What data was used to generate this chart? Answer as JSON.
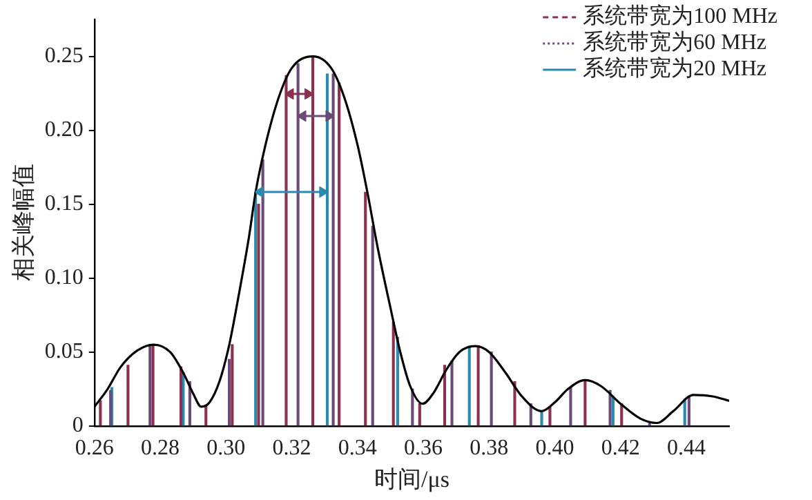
{
  "chart_data": {
    "type": "line",
    "xlabel": "时间/μs",
    "ylabel": "相关峰幅值",
    "xlim": [
      0.26,
      0.453
    ],
    "xticks": [
      0.26,
      0.28,
      {
        "value": 0.3,
        "label": "0.30"
      },
      0.32,
      0.34,
      0.36,
      0.38,
      {
        "value": 0.4,
        "label": "0.40"
      },
      0.42,
      0.44
    ],
    "ylim": [
      0,
      0.275
    ],
    "yticks": [
      0,
      0.05,
      {
        "value": 0.1,
        "label": "0.10"
      },
      0.15,
      {
        "value": 0.2,
        "label": "0.20"
      },
      0.25
    ],
    "grid": false,
    "legend": "top right",
    "series": [
      {
        "color": "#000000",
        "line_style": "solid",
        "x": [
          0.26,
          0.264,
          0.268,
          0.273,
          0.278,
          0.283,
          0.287,
          0.29,
          0.2925,
          0.295,
          0.298,
          0.301,
          0.304,
          0.307,
          0.309,
          0.312,
          0.316,
          0.32,
          0.3264,
          0.332,
          0.336,
          0.34,
          0.343,
          0.346,
          0.35,
          0.353,
          0.356,
          0.3598,
          0.363,
          0.367,
          0.371,
          0.3758,
          0.38,
          0.385,
          0.39,
          0.3959,
          0.4,
          0.404,
          0.4092,
          0.414,
          0.42,
          0.426,
          0.431,
          0.436,
          0.4422,
          0.448,
          0.453
        ],
        "values": [
          0.013,
          0.025,
          0.04,
          0.051,
          0.055,
          0.05,
          0.036,
          0.022,
          0.013,
          0.016,
          0.03,
          0.055,
          0.09,
          0.128,
          0.158,
          0.19,
          0.222,
          0.242,
          0.25,
          0.242,
          0.222,
          0.19,
          0.158,
          0.122,
          0.08,
          0.05,
          0.027,
          0.015,
          0.022,
          0.038,
          0.05,
          0.054,
          0.05,
          0.036,
          0.02,
          0.01,
          0.016,
          0.025,
          0.031,
          0.027,
          0.015,
          0.005,
          0.002,
          0.01,
          0.021,
          0.02,
          0.017
        ]
      },
      {
        "type": "bar",
        "name": "系统带宽为100 MHz",
        "color": "#8c3050",
        "line_style": "dashed",
        "x": [
          0.2618,
          0.2702,
          0.2778,
          0.2863,
          0.2939,
          0.3019,
          0.3099,
          0.3183,
          0.3264,
          0.3344,
          0.3424,
          0.3509,
          0.3589,
          0.3665,
          0.3767,
          0.3878,
          0.3985,
          0.4092,
          0.4203
        ],
        "values": [
          0.017,
          0.041,
          0.055,
          0.04,
          0.014,
          0.055,
          0.15,
          0.237,
          0.25,
          0.232,
          0.158,
          0.07,
          0.015,
          0.041,
          0.054,
          0.03,
          0.013,
          0.031,
          0.015
        ]
      },
      {
        "type": "bar",
        "name": "系统带宽为60 MHz",
        "color": "#6a4a7a",
        "line_style": "dotted",
        "x": [
          0.2649,
          0.2769,
          0.289,
          0.301,
          0.3112,
          0.3219,
          0.3326,
          0.3446,
          0.3567,
          0.3687,
          0.3807,
          0.3927,
          0.4048,
          0.4168,
          0.4288,
          0.4408
        ],
        "values": [
          0.024,
          0.055,
          0.03,
          0.045,
          0.18,
          0.245,
          0.238,
          0.135,
          0.025,
          0.044,
          0.05,
          0.015,
          0.026,
          0.024,
          0.003,
          0.02
        ]
      },
      {
        "type": "bar",
        "name": "系统带宽为20 MHz",
        "color": "#2a8ab0",
        "line_style": "solid",
        "x": [
          0.2653,
          0.287,
          0.309,
          0.3308,
          0.3522,
          0.374,
          0.396,
          0.4177,
          0.4395
        ],
        "values": [
          0.026,
          0.036,
          0.158,
          0.238,
          0.06,
          0.054,
          0.01,
          0.02,
          0.018
        ]
      }
    ]
  }
}
